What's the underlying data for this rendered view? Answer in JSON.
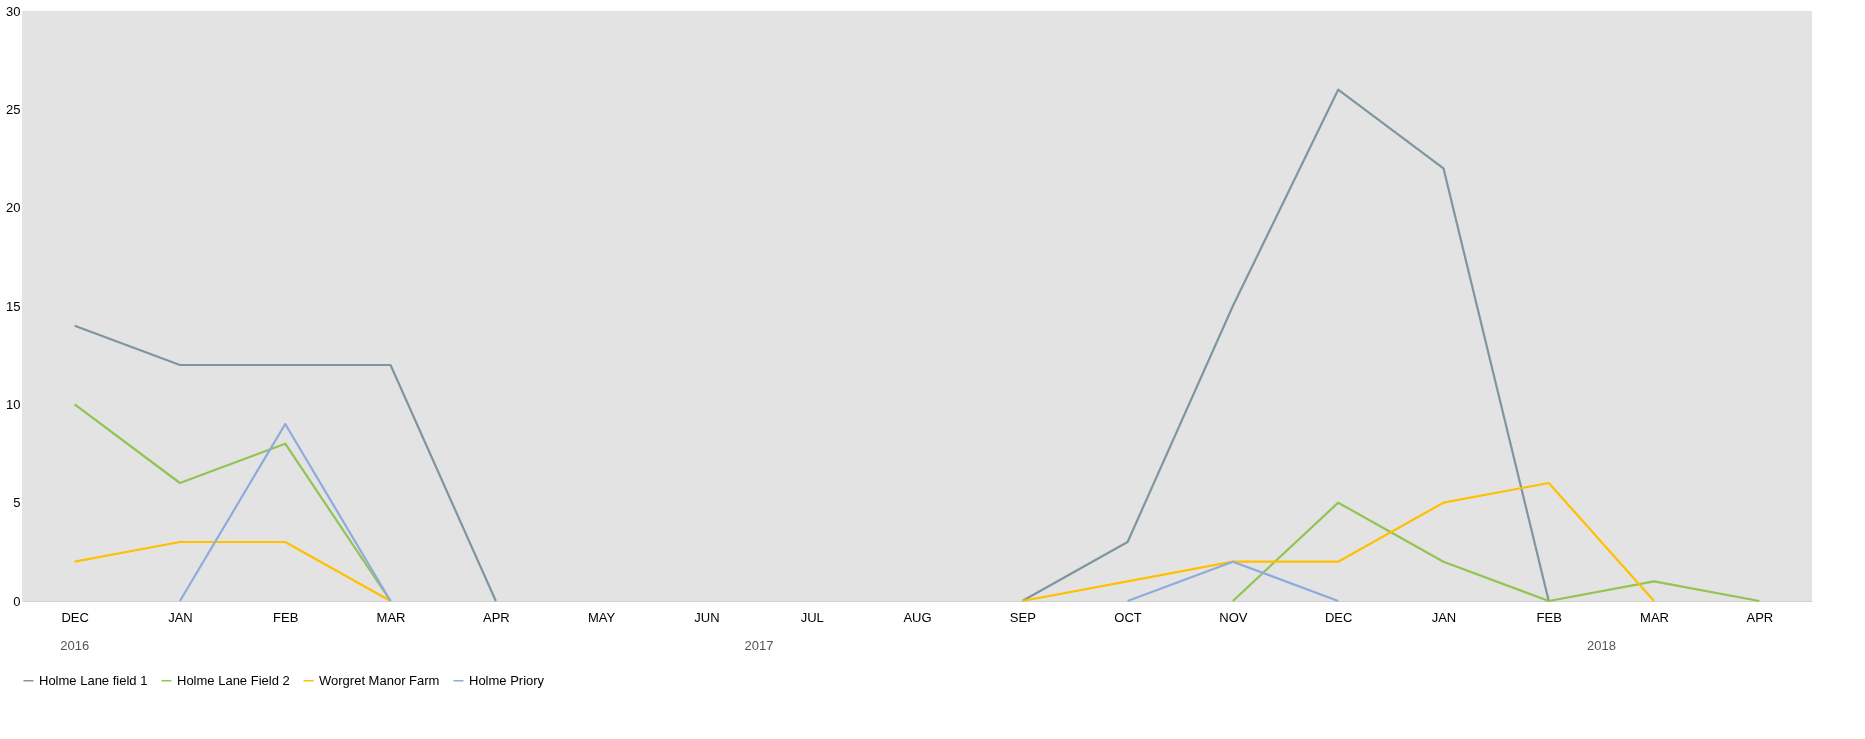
{
  "chart_data": {
    "type": "line",
    "categories": [
      "DEC",
      "JAN",
      "FEB",
      "MAR",
      "APR",
      "MAY",
      "JUN",
      "JUL",
      "AUG",
      "SEP",
      "OCT",
      "NOV",
      "DEC",
      "JAN",
      "FEB",
      "MAR",
      "APR"
    ],
    "series": [
      {
        "name": "Holme Lane field 1",
        "color": "#7f96a0",
        "values": [
          14,
          12,
          12,
          12,
          0,
          null,
          null,
          null,
          null,
          0,
          3,
          15,
          26,
          22,
          0,
          null,
          null
        ]
      },
      {
        "name": "Holme Lane Field 2",
        "color": "#92c353",
        "values": [
          10,
          6,
          8,
          0,
          null,
          null,
          null,
          null,
          null,
          null,
          null,
          0,
          5,
          2,
          0,
          1,
          0
        ]
      },
      {
        "name": "Worgret Manor Farm",
        "color": "#ffc000",
        "values": [
          2,
          3,
          3,
          0,
          null,
          null,
          null,
          null,
          null,
          0,
          1,
          2,
          2,
          5,
          6,
          0,
          null
        ]
      },
      {
        "name": "Holme Priory",
        "color": "#8faadc",
        "values": [
          null,
          0,
          9,
          0,
          null,
          null,
          null,
          null,
          null,
          null,
          0,
          2,
          0,
          null,
          null,
          null,
          null
        ]
      }
    ],
    "ylim": [
      0,
      30
    ],
    "yticks": [
      0,
      5,
      10,
      15,
      20,
      25,
      30
    ],
    "grid": false,
    "legend": "bottom",
    "marker": "none",
    "line_style": "solid",
    "annotations": [
      "2016",
      "2017",
      "2018"
    ]
  }
}
